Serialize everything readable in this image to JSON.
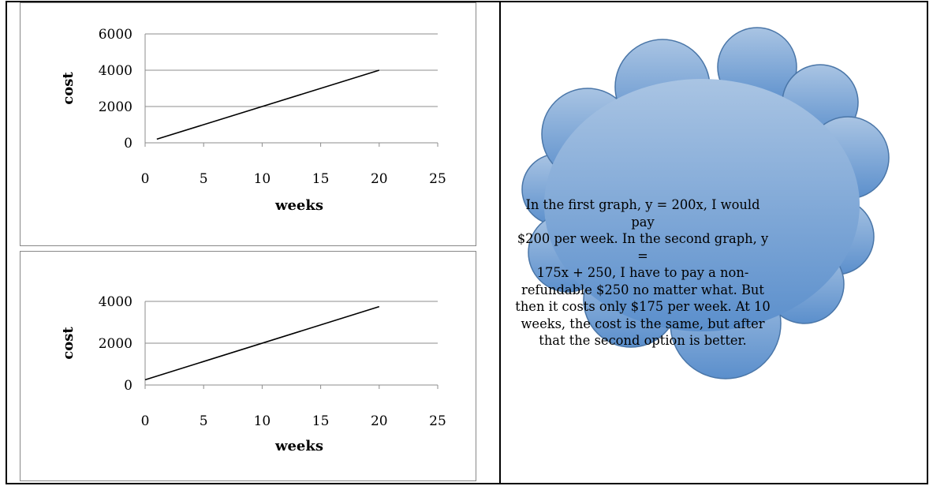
{
  "chart_data": [
    {
      "type": "line",
      "title": "",
      "xlabel": "weeks",
      "ylabel": "cost",
      "xlim": [
        0,
        25
      ],
      "ylim": [
        0,
        6000
      ],
      "x_ticks": [
        "0",
        "5",
        "10",
        "15",
        "20",
        "25"
      ],
      "y_ticks": [
        "0",
        "2000",
        "4000",
        "6000"
      ],
      "grid": "horizontal",
      "series": [
        {
          "x": [
            1,
            20
          ],
          "y": [
            200,
            4000
          ],
          "color": "#000000"
        }
      ]
    },
    {
      "type": "line",
      "title": "",
      "xlabel": "weeks",
      "ylabel": "cost",
      "xlim": [
        0,
        25
      ],
      "ylim": [
        0,
        4000
      ],
      "x_ticks": [
        "0",
        "5",
        "10",
        "15",
        "20",
        "25"
      ],
      "y_ticks": [
        "0",
        "2000",
        "4000"
      ],
      "grid": "horizontal",
      "series": [
        {
          "x": [
            0,
            20
          ],
          "y": [
            250,
            3750
          ],
          "color": "#000000"
        }
      ]
    }
  ],
  "callout": {
    "lines": [
      "In the first graph, y = 200x, I would pay",
      "$200 per week. In the second graph, y =",
      "175x + 250, I have to pay a non-",
      "refundable $250 no matter what. But",
      "then it costs only $175 per week. At 10",
      "weeks, the cost is the same, but after",
      "that the second option is better."
    ],
    "fill_top": "#a9c4e3",
    "fill_bottom": "#5b8fcc",
    "stroke": "#4a76a8"
  }
}
